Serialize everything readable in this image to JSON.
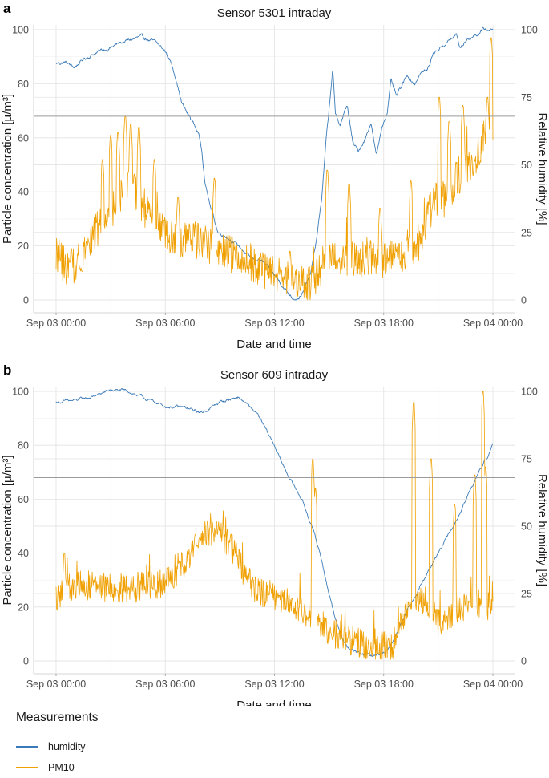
{
  "legend": {
    "title": "Measurements",
    "items": [
      {
        "name": "humidity",
        "color": "#3a7ab8"
      },
      {
        "name": "PM10",
        "color": "#f0a000"
      }
    ]
  },
  "chart_data": [
    {
      "type": "line",
      "panel_label": "a",
      "title": "Sensor 5301 intraday",
      "xlabel": "Date and time",
      "ylabel": "Particle concentration [μ/m³]",
      "y2label": "Relative humidity [%]",
      "x_ticks": [
        "Sep 03 00:00",
        "Sep 03 06:00",
        "Sep 03 12:00",
        "Sep 03 18:00",
        "Sep 04 00:00"
      ],
      "x_range_hours": [
        0,
        24
      ],
      "ylim": [
        0,
        100
      ],
      "y_ticks": [
        0,
        20,
        40,
        60,
        80,
        100
      ],
      "y2lim": [
        0,
        100
      ],
      "y2_ticks": [
        0,
        25,
        50,
        75,
        100
      ],
      "reference_line": 68,
      "grid": true,
      "series": [
        {
          "name": "humidity",
          "axis": "right",
          "color": "#3a7ab8",
          "keypoints": [
            [
              0,
              87.5
            ],
            [
              0.5,
              88
            ],
            [
              1,
              86
            ],
            [
              1.5,
              89
            ],
            [
              2,
              91
            ],
            [
              3,
              93.5
            ],
            [
              3.5,
              95
            ],
            [
              4,
              96
            ],
            [
              4.5,
              97
            ],
            [
              5,
              96.5
            ],
            [
              5.5,
              95
            ],
            [
              6,
              92
            ],
            [
              6.3,
              88
            ],
            [
              6.6,
              82
            ],
            [
              6.9,
              73
            ],
            [
              7.2,
              69
            ],
            [
              7.5,
              66
            ],
            [
              7.8,
              62
            ],
            [
              8,
              56
            ],
            [
              8.2,
              43
            ],
            [
              8.5,
              34
            ],
            [
              8.9,
              25
            ],
            [
              9.3,
              24
            ],
            [
              9.7,
              22
            ],
            [
              10.2,
              19
            ],
            [
              10.7,
              15
            ],
            [
              11.2,
              15
            ],
            [
              11.6,
              12
            ],
            [
              12,
              9
            ],
            [
              12.4,
              6
            ],
            [
              12.7,
              3
            ],
            [
              13,
              1
            ],
            [
              13.3,
              1
            ],
            [
              13.6,
              3
            ],
            [
              14,
              10
            ],
            [
              14.3,
              22
            ],
            [
              14.6,
              38
            ],
            [
              14.85,
              60
            ],
            [
              15,
              70
            ],
            [
              15.2,
              86
            ],
            [
              15.35,
              68
            ],
            [
              15.6,
              65
            ],
            [
              16,
              72
            ],
            [
              16.3,
              58
            ],
            [
              16.6,
              55
            ],
            [
              17,
              60
            ],
            [
              17.3,
              66
            ],
            [
              17.6,
              53
            ],
            [
              17.9,
              64
            ],
            [
              18.2,
              70
            ],
            [
              18.4,
              81
            ],
            [
              18.7,
              75
            ],
            [
              19,
              79
            ],
            [
              19.3,
              83
            ],
            [
              19.7,
              80
            ],
            [
              20,
              84
            ],
            [
              20.4,
              85
            ],
            [
              20.7,
              91
            ],
            [
              21.2,
              94
            ],
            [
              21.6,
              96
            ],
            [
              22,
              98
            ],
            [
              22.2,
              93
            ],
            [
              22.5,
              96
            ],
            [
              23,
              98
            ],
            [
              23.5,
              100
            ],
            [
              24,
              100
            ]
          ],
          "noise": 0.9
        },
        {
          "name": "PM10",
          "axis": "left",
          "color": "#f0a000",
          "keypoints": [
            [
              0,
              18
            ],
            [
              0.5,
              12
            ],
            [
              1,
              13
            ],
            [
              1.5,
              18
            ],
            [
              2,
              24
            ],
            [
              2.5,
              28
            ],
            [
              3,
              32
            ],
            [
              3.5,
              38
            ],
            [
              4,
              42
            ],
            [
              4.5,
              38
            ],
            [
              5,
              32
            ],
            [
              5.5,
              30
            ],
            [
              6,
              24
            ],
            [
              7,
              22
            ],
            [
              8,
              22
            ],
            [
              9,
              18
            ],
            [
              10,
              16
            ],
            [
              11,
              13
            ],
            [
              12,
              9
            ],
            [
              13,
              7
            ],
            [
              14,
              6
            ],
            [
              15,
              14
            ],
            [
              16,
              16
            ],
            [
              17,
              15
            ],
            [
              18,
              14
            ],
            [
              19,
              16
            ],
            [
              20,
              22
            ],
            [
              20.5,
              32
            ],
            [
              21,
              38
            ],
            [
              21.5,
              36
            ],
            [
              22,
              45
            ],
            [
              22.5,
              48
            ],
            [
              23,
              50
            ],
            [
              23.5,
              60
            ],
            [
              24,
              66
            ]
          ],
          "noise": 7,
          "spikes": [
            [
              2.55,
              52
            ],
            [
              3,
              61
            ],
            [
              3.4,
              62
            ],
            [
              3.8,
              68
            ],
            [
              4.1,
              65
            ],
            [
              4.55,
              64
            ],
            [
              5.4,
              52
            ],
            [
              6.7,
              38
            ],
            [
              8.7,
              45
            ],
            [
              12.85,
              18
            ],
            [
              14.9,
              48
            ],
            [
              16.1,
              43
            ],
            [
              17.8,
              34
            ],
            [
              19.5,
              44
            ],
            [
              21.05,
              75
            ],
            [
              21.6,
              66
            ],
            [
              22.15,
              14
            ],
            [
              22.35,
              72
            ],
            [
              23.7,
              75
            ],
            [
              23.9,
              97
            ]
          ],
          "spike_decay": 2.5
        }
      ]
    },
    {
      "type": "line",
      "panel_label": "b",
      "title": "Sensor 609 intraday",
      "xlabel": "Date and time",
      "ylabel": "Particle concentration [μ/m³]",
      "y2label": "Relative humidity [%]",
      "x_ticks": [
        "Sep 03 00:00",
        "Sep 03 06:00",
        "Sep 03 12:00",
        "Sep 03 18:00",
        "Sep 04 00:00"
      ],
      "x_range_hours": [
        0,
        24
      ],
      "ylim": [
        0,
        100
      ],
      "y_ticks": [
        0,
        20,
        40,
        60,
        80,
        100
      ],
      "y2lim": [
        0,
        100
      ],
      "y2_ticks": [
        0,
        25,
        50,
        75,
        100
      ],
      "reference_line": 68,
      "grid": true,
      "series": [
        {
          "name": "humidity",
          "axis": "right",
          "color": "#3a7ab8",
          "keypoints": [
            [
              0,
              96
            ],
            [
              1,
              96.5
            ],
            [
              2,
              98
            ],
            [
              3,
              100.5
            ],
            [
              4,
              100
            ],
            [
              5,
              97
            ],
            [
              6,
              94.5
            ],
            [
              7,
              94
            ],
            [
              8,
              92
            ],
            [
              9,
              96
            ],
            [
              10,
              98
            ],
            [
              11,
              92
            ],
            [
              12,
              80
            ],
            [
              12.5,
              72
            ],
            [
              13,
              66
            ],
            [
              13.5,
              60
            ],
            [
              14,
              51
            ],
            [
              14.5,
              40
            ],
            [
              15,
              25
            ],
            [
              15.5,
              12
            ],
            [
              16,
              5
            ],
            [
              16.5,
              3
            ],
            [
              17,
              2
            ],
            [
              17.5,
              2
            ],
            [
              18,
              3
            ],
            [
              18.5,
              7
            ],
            [
              19,
              15
            ],
            [
              20,
              28
            ],
            [
              21,
              40
            ],
            [
              22,
              52
            ],
            [
              23,
              67
            ],
            [
              24,
              80
            ]
          ],
          "noise": 0.7
        },
        {
          "name": "PM10",
          "axis": "left",
          "color": "#f0a000",
          "keypoints": [
            [
              0,
              24
            ],
            [
              1,
              28
            ],
            [
              2,
              28
            ],
            [
              3,
              27
            ],
            [
              4,
              26
            ],
            [
              5,
              28
            ],
            [
              6,
              29
            ],
            [
              6.5,
              32
            ],
            [
              7,
              36
            ],
            [
              7.5,
              42
            ],
            [
              8,
              47
            ],
            [
              8.5,
              48
            ],
            [
              9,
              47
            ],
            [
              9.5,
              44
            ],
            [
              10,
              38
            ],
            [
              10.5,
              30
            ],
            [
              11,
              26
            ],
            [
              12,
              24
            ],
            [
              13,
              21
            ],
            [
              14,
              17
            ],
            [
              15,
              11
            ],
            [
              16,
              8
            ],
            [
              17,
              6
            ],
            [
              18,
              6
            ],
            [
              18.5,
              6
            ],
            [
              19,
              15
            ],
            [
              19.5,
              22
            ],
            [
              20,
              24
            ],
            [
              20.5,
              20
            ],
            [
              21,
              14
            ],
            [
              22,
              19
            ],
            [
              23,
              20
            ],
            [
              24,
              20
            ]
          ],
          "noise": 5.5,
          "spikes": [
            [
              0.45,
              40
            ],
            [
              7.65,
              47
            ],
            [
              14.1,
              75
            ],
            [
              14.25,
              64
            ],
            [
              19.65,
              96
            ],
            [
              20.6,
              75
            ],
            [
              21.9,
              58
            ],
            [
              23,
              69
            ],
            [
              23.45,
              100
            ],
            [
              23.6,
              72
            ]
          ],
          "spike_decay": 3
        }
      ]
    }
  ]
}
